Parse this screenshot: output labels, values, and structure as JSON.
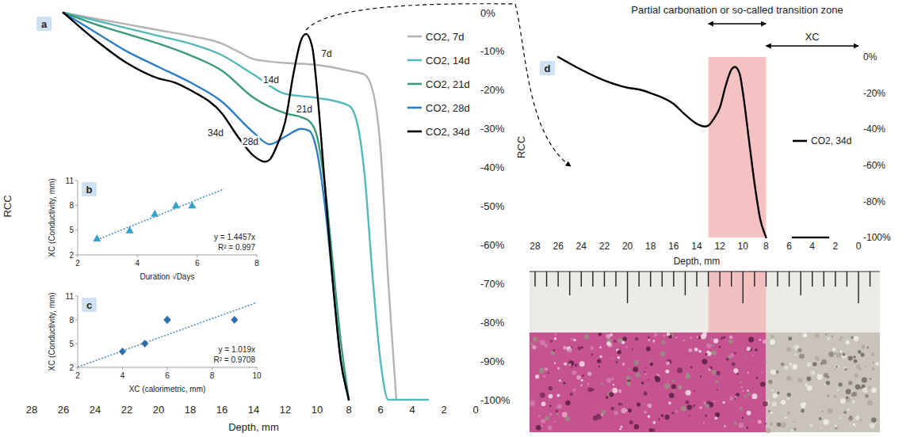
{
  "chart_data": [
    {
      "type": "line",
      "panel_label": "a",
      "x_label": "Depth, mm",
      "y_label": "RCC",
      "xlim": [
        28,
        0
      ],
      "ylim": [
        -100,
        0
      ],
      "xticks": [
        28,
        26,
        24,
        22,
        20,
        18,
        16,
        14,
        12,
        10,
        8,
        6,
        4,
        2,
        0
      ],
      "yticks": [
        {
          "value": 0,
          "label": "0%"
        },
        {
          "value": -10,
          "label": "-10%"
        },
        {
          "value": -20,
          "label": "-20%"
        },
        {
          "value": -30,
          "label": "-30%"
        },
        {
          "value": -40,
          "label": "-40%"
        },
        {
          "value": -50,
          "label": "-50%"
        },
        {
          "value": -60,
          "label": "-60%"
        },
        {
          "value": -70,
          "label": "-70%"
        },
        {
          "value": -80,
          "label": "-80%"
        },
        {
          "value": -90,
          "label": "-90%"
        },
        {
          "value": -100,
          "label": "-100%"
        }
      ],
      "legend": "right",
      "series": [
        {
          "name": "CO2, 7d",
          "color": "#b4b4b4",
          "x": [
            26,
            24,
            22,
            20,
            18,
            16,
            15,
            14,
            12,
            10,
            8,
            7,
            6.5,
            6,
            5.5,
            5
          ],
          "values": [
            0,
            -1.5,
            -3,
            -4.5,
            -6,
            -8,
            -10,
            -12,
            -13,
            -13.5,
            -15,
            -16,
            -20,
            -35,
            -70,
            -100
          ]
        },
        {
          "name": "CO2, 14d",
          "color": "#55b8b8",
          "x": [
            26,
            24,
            22,
            20,
            18,
            16,
            14,
            12,
            10,
            8,
            7.5,
            7,
            6.5,
            6,
            5.5,
            3
          ],
          "values": [
            0,
            -2,
            -4,
            -6,
            -8,
            -11,
            -16,
            -21,
            -22,
            -24,
            -28,
            -42,
            -68,
            -90,
            -100,
            -100
          ]
        },
        {
          "name": "CO2, 21d",
          "color": "#3a9a78",
          "x": [
            26,
            24,
            22,
            20,
            18,
            16,
            14,
            12,
            11,
            10.5,
            10,
            9.5,
            9,
            8.5,
            8
          ],
          "values": [
            0,
            -3,
            -5.5,
            -8,
            -11,
            -15,
            -22,
            -26,
            -27,
            -28,
            -32,
            -45,
            -65,
            -85,
            -100
          ]
        },
        {
          "name": "CO2, 28d",
          "color": "#2f7ec2",
          "x": [
            26,
            24,
            22,
            20,
            18,
            16,
            14,
            13,
            12,
            11,
            10.5,
            10,
            9.5,
            9,
            8.5,
            8
          ],
          "values": [
            0,
            -5,
            -10,
            -14,
            -18,
            -23,
            -31,
            -34,
            -32,
            -30,
            -30.5,
            -36,
            -50,
            -70,
            -90,
            -100
          ]
        },
        {
          "name": "CO2, 34d",
          "color": "#000000",
          "x": [
            26,
            24,
            22,
            20,
            19,
            18,
            16,
            15,
            14,
            13.3,
            13,
            12.5,
            12,
            11.5,
            11,
            10.7,
            10.3,
            10,
            9.5,
            9,
            8.5,
            8
          ],
          "values": [
            0,
            -7,
            -13,
            -17,
            -18,
            -20,
            -26,
            -32,
            -37,
            -38.5,
            -38,
            -34,
            -28,
            -16,
            -7,
            -5.5,
            -9,
            -20,
            -45,
            -70,
            -90,
            -100
          ]
        }
      ],
      "annotations": [
        {
          "text": "7d",
          "x": 9.4,
          "y": -10.5
        },
        {
          "text": "14d",
          "x": 12.9,
          "y": -17.3
        },
        {
          "text": "21d",
          "x": 10.8,
          "y": -24.8
        },
        {
          "text": "28d",
          "x": 14.2,
          "y": -33.2
        },
        {
          "text": "34d",
          "x": 16.4,
          "y": -31
        }
      ]
    },
    {
      "type": "scatter",
      "panel_label": "b",
      "x_label": "Duration √Days",
      "y_label": "XC (Conductivity, mm)",
      "xlim": [
        2,
        8
      ],
      "ylim": [
        2,
        11
      ],
      "xticks": [
        2,
        4,
        6,
        8
      ],
      "yticks": [
        2,
        5,
        8,
        11
      ],
      "series": [
        {
          "color": "#3a9fc6",
          "marker": "triangle",
          "x": [
            2.6458,
            3.7417,
            4.5826,
            5.2915,
            5.831
          ],
          "values": [
            4,
            5,
            7,
            8,
            8
          ]
        }
      ],
      "trendline": {
        "slope": 1.4457,
        "x": [
          2.6458,
          6.9
        ],
        "line_style": "dotted",
        "color": "#4a8fc0",
        "equation": "y = 1.4457x",
        "r2_label": "R² = 0.997"
      }
    },
    {
      "type": "scatter",
      "panel_label": "c",
      "x_label": "XC (calorimetric, mm)",
      "y_label": "XC (Conductivity, mm)",
      "xlim": [
        2,
        10
      ],
      "ylim": [
        2,
        11
      ],
      "xticks": [
        2,
        4,
        6,
        8,
        10
      ],
      "yticks": [
        2,
        5,
        8,
        11
      ],
      "series": [
        {
          "color": "#2f6fb0",
          "marker": "diamond",
          "x": [
            4,
            5,
            6,
            6,
            9
          ],
          "values": [
            4,
            5,
            8,
            8,
            8
          ]
        }
      ],
      "trendline": {
        "slope": 1.019,
        "x": [
          2,
          10
        ],
        "line_style": "dotted",
        "color": "#4a8fc0",
        "equation": "y = 1.019x",
        "r2_label": "R² = 0.9708"
      }
    },
    {
      "type": "line",
      "panel_label": "d",
      "x_label": "Depth, mm",
      "y_label": "RCC",
      "xlim": [
        28,
        0
      ],
      "ylim": [
        -100,
        0
      ],
      "xticks": [
        28,
        26,
        24,
        22,
        20,
        18,
        16,
        14,
        12,
        10,
        8,
        6,
        4,
        2,
        0
      ],
      "yticks": [
        {
          "value": 0,
          "label": "0%"
        },
        {
          "value": -20,
          "label": "-20%"
        },
        {
          "value": -40,
          "label": "-40%"
        },
        {
          "value": -60,
          "label": "-60%"
        },
        {
          "value": -80,
          "label": "-80%"
        },
        {
          "value": -100,
          "label": "-100%"
        }
      ],
      "legend": "right",
      "series": [
        {
          "name": "CO2, 34d",
          "color": "#000000",
          "x": [
            26,
            24,
            22,
            20,
            19,
            18,
            16,
            15,
            14,
            13.3,
            13,
            12.5,
            12,
            11.5,
            11,
            10.7,
            10.3,
            10,
            9.5,
            9,
            8.5,
            8,
            7,
            5.7,
            2.6
          ],
          "values": [
            0,
            -7,
            -13,
            -17,
            -18,
            -20,
            -26,
            -32,
            -37,
            -38.5,
            -38,
            -34,
            -28,
            -16,
            -7,
            -5.5,
            -9,
            -20,
            -45,
            -70,
            -90,
            -100,
            null,
            -100,
            -100
          ]
        }
      ],
      "zones": [
        {
          "text": "Partial carbonation or so-called transition zone",
          "x": [
            13,
            8
          ],
          "color": "#f3b3b3"
        },
        {
          "text": "XC",
          "x": [
            8,
            0
          ]
        }
      ]
    }
  ]
}
